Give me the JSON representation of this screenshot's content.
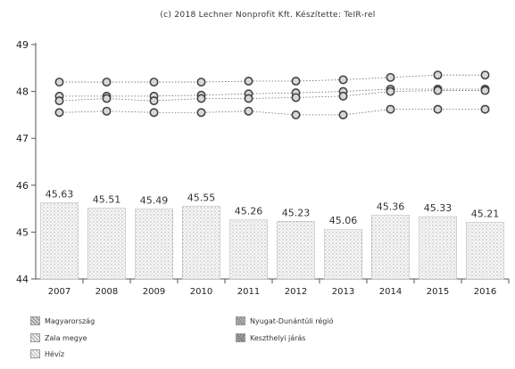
{
  "chart_data": {
    "type": "bar",
    "title": "(c) 2018 Lechner Nonprofit Kft. Készítette: TeIR-rel",
    "categories": [
      "2007",
      "2008",
      "2009",
      "2010",
      "2011",
      "2012",
      "2013",
      "2014",
      "2015",
      "2016"
    ],
    "ylim": [
      44,
      49
    ],
    "yticks": [
      "44",
      "45",
      "46",
      "47",
      "48",
      "49"
    ],
    "bar_series": {
      "name": "Hévíz",
      "values": [
        45.63,
        45.51,
        45.49,
        45.55,
        45.26,
        45.23,
        45.06,
        45.36,
        45.33,
        45.21
      ],
      "labels": [
        "45.63",
        "45.51",
        "45.49",
        "45.55",
        "45.26",
        "45.23",
        "45.06",
        "45.36",
        "45.33",
        "45.21"
      ]
    },
    "line_series": [
      {
        "name": "Zala megye",
        "values": [
          48.2,
          48.2,
          48.2,
          48.2,
          48.22,
          48.22,
          48.25,
          48.3,
          48.35,
          48.35
        ]
      },
      {
        "name": "Nyugat-Dunántúli régió",
        "values": [
          47.9,
          47.9,
          47.9,
          47.92,
          47.95,
          47.97,
          48.0,
          48.05,
          48.05,
          48.05
        ]
      },
      {
        "name": "Keszthelyi járás",
        "values": [
          47.8,
          47.85,
          47.8,
          47.85,
          47.85,
          47.87,
          47.9,
          48.0,
          48.02,
          48.02
        ]
      },
      {
        "name": "Magyarország",
        "values": [
          47.55,
          47.58,
          47.55,
          47.55,
          47.58,
          47.5,
          47.5,
          47.62,
          47.62,
          47.62
        ]
      }
    ],
    "legend": {
      "placement": "bottom",
      "entries": [
        "Magyarország",
        "Nyugat-Dunántúli régió",
        "Zala megye",
        "Keszthelyi járás",
        "Hévíz"
      ]
    },
    "grid": false
  }
}
